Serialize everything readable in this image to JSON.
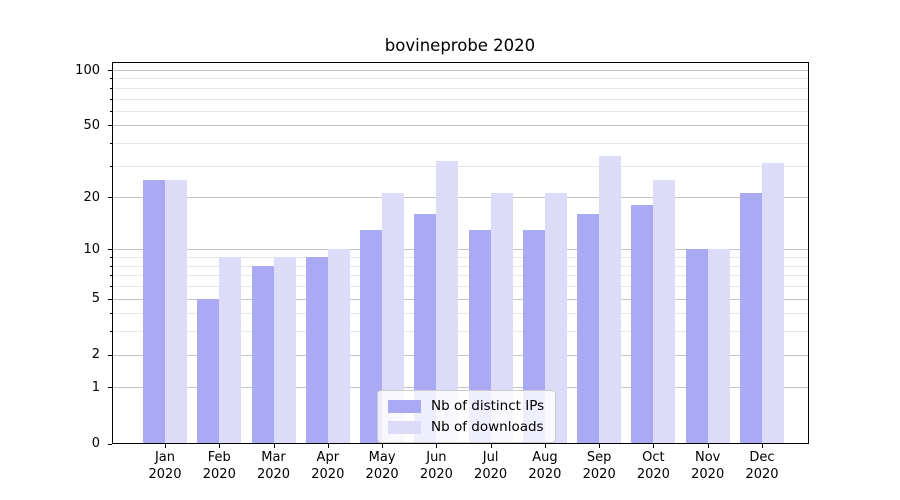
{
  "title": "bovineprobe 2020",
  "colors": {
    "distinct_ips": "#a9a9f4",
    "downloads": "#dcdcf9",
    "grid_major": "#c3c3c3",
    "grid_minor": "#e7e7e7",
    "axis": "#000000",
    "legend_border": "#cccccc"
  },
  "chart_data": {
    "type": "bar",
    "title": "bovineprobe 2020",
    "categories": [
      "Jan\n2020",
      "Feb\n2020",
      "Mar\n2020",
      "Apr\n2020",
      "May\n2020",
      "Jun\n2020",
      "Jul\n2020",
      "Aug\n2020",
      "Sep\n2020",
      "Oct\n2020",
      "Nov\n2020",
      "Dec\n2020"
    ],
    "series": [
      {
        "name": "Nb of distinct IPs",
        "color": "#a9a9f4",
        "values": [
          25,
          5,
          8,
          9,
          13,
          16,
          13,
          13,
          16,
          18,
          10,
          21
        ]
      },
      {
        "name": "Nb of downloads",
        "color": "#dcdcf9",
        "values": [
          25,
          9,
          9,
          10,
          21,
          32,
          21,
          21,
          34,
          25,
          10,
          31
        ]
      }
    ],
    "xlabel": "",
    "ylabel": "",
    "yscale": "log1p",
    "ylim": [
      0,
      110
    ],
    "yticks": [
      0,
      1,
      2,
      5,
      10,
      20,
      50,
      100
    ],
    "minor_yticks": [
      3,
      4,
      6,
      7,
      8,
      9,
      30,
      40,
      60,
      70,
      80,
      90
    ],
    "grid": true,
    "legend_position": "lower center"
  }
}
